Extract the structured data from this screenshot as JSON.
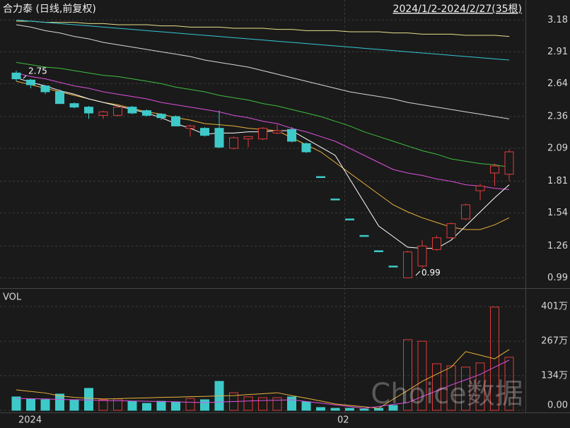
{
  "header": {
    "title": "合力泰 (日线,前复权)",
    "range": "2024/1/2-2024/2/27(35根)",
    "watermark": "Choice数据"
  },
  "chart_data": [
    {
      "type": "candlestick",
      "categories": [
        "2024",
        null,
        null,
        null,
        null,
        null,
        null,
        null,
        null,
        null,
        null,
        null,
        null,
        null,
        null,
        null,
        null,
        null,
        null,
        null,
        null,
        null,
        "02",
        null,
        null,
        null,
        null,
        null,
        null,
        null,
        null,
        null,
        null,
        null,
        null
      ],
      "open": [
        2.73,
        2.67,
        2.62,
        2.57,
        2.47,
        2.44,
        2.37,
        2.37,
        2.44,
        2.41,
        2.38,
        2.36,
        2.26,
        2.26,
        2.26,
        2.09,
        2.17,
        2.17,
        2.22,
        2.25,
        2.13,
        1.85,
        1.66,
        1.49,
        1.35,
        1.22,
        1.09,
        0.99,
        1.09,
        1.23,
        1.33,
        1.49,
        1.73,
        1.88,
        1.87
      ],
      "high": [
        2.75,
        2.68,
        2.63,
        2.59,
        2.48,
        2.45,
        2.41,
        2.44,
        2.45,
        2.42,
        2.39,
        2.37,
        2.29,
        2.27,
        2.41,
        2.19,
        2.19,
        2.27,
        2.29,
        2.27,
        2.14,
        1.85,
        1.66,
        1.49,
        1.35,
        1.22,
        1.09,
        1.22,
        1.31,
        1.35,
        1.46,
        1.62,
        1.79,
        1.96,
        2.08
      ],
      "low": [
        2.66,
        2.6,
        2.55,
        2.47,
        2.43,
        2.34,
        2.34,
        2.36,
        2.38,
        2.36,
        2.33,
        2.28,
        2.19,
        2.19,
        2.09,
        2.08,
        2.1,
        2.16,
        2.21,
        2.14,
        2.05,
        1.85,
        1.66,
        1.49,
        1.35,
        1.22,
        1.09,
        0.99,
        1.07,
        1.22,
        1.32,
        1.48,
        1.65,
        1.77,
        1.81
      ],
      "close": [
        2.68,
        2.63,
        2.57,
        2.47,
        2.44,
        2.39,
        2.4,
        2.44,
        2.39,
        2.37,
        2.35,
        2.28,
        2.28,
        2.2,
        2.1,
        2.18,
        2.19,
        2.26,
        2.24,
        2.15,
        2.06,
        1.85,
        1.66,
        1.49,
        1.35,
        1.22,
        1.09,
        1.21,
        1.26,
        1.33,
        1.45,
        1.61,
        1.77,
        1.94,
        2.06
      ],
      "up_color": "#e23b3b",
      "down_color": "#3ec9c9",
      "ylim": [
        0.92,
        3.32
      ],
      "yticks": [
        3.18,
        2.91,
        2.64,
        2.36,
        2.09,
        1.81,
        1.54,
        1.26,
        0.99
      ],
      "grid": true,
      "high_label": 2.75,
      "low_label": 0.99,
      "lines": [
        {
          "color": "#e6e08a",
          "values": [
            3.17,
            3.17,
            3.16,
            3.16,
            3.16,
            3.15,
            3.15,
            3.14,
            3.14,
            3.14,
            3.13,
            3.13,
            3.12,
            3.12,
            3.12,
            3.11,
            3.11,
            3.11,
            3.1,
            3.1,
            3.09,
            3.09,
            3.09,
            3.08,
            3.08,
            3.08,
            3.07,
            3.07,
            3.06,
            3.06,
            3.06,
            3.05,
            3.05,
            3.05,
            3.04
          ]
        },
        {
          "color": "#35c6d6",
          "values": [
            3.18,
            3.17,
            3.16,
            3.15,
            3.14,
            3.13,
            3.12,
            3.11,
            3.1,
            3.09,
            3.08,
            3.07,
            3.06,
            3.05,
            3.04,
            3.03,
            3.02,
            3.01,
            3.0,
            2.99,
            2.98,
            2.97,
            2.96,
            2.95,
            2.94,
            2.93,
            2.92,
            2.91,
            2.9,
            2.89,
            2.88,
            2.87,
            2.86,
            2.85,
            2.84
          ]
        },
        {
          "color": "#d8d8d8",
          "values": [
            3.14,
            3.12,
            3.09,
            3.07,
            3.04,
            3.02,
            2.99,
            2.97,
            2.95,
            2.93,
            2.91,
            2.89,
            2.87,
            2.84,
            2.82,
            2.8,
            2.78,
            2.75,
            2.72,
            2.69,
            2.66,
            2.63,
            2.6,
            2.57,
            2.55,
            2.53,
            2.51,
            2.48,
            2.46,
            2.44,
            2.42,
            2.4,
            2.38,
            2.36,
            2.34
          ]
        },
        {
          "color": "#3fbf3f",
          "values": [
            2.82,
            2.8,
            2.78,
            2.77,
            2.75,
            2.73,
            2.71,
            2.7,
            2.68,
            2.66,
            2.64,
            2.61,
            2.59,
            2.57,
            2.54,
            2.52,
            2.5,
            2.47,
            2.45,
            2.42,
            2.39,
            2.36,
            2.32,
            2.28,
            2.23,
            2.19,
            2.15,
            2.11,
            2.07,
            2.04,
            2.0,
            1.98,
            1.96,
            1.95,
            1.93
          ]
        },
        {
          "color": "#e050e0",
          "values": [
            2.73,
            2.7,
            2.68,
            2.65,
            2.62,
            2.6,
            2.57,
            2.55,
            2.53,
            2.51,
            2.48,
            2.46,
            2.44,
            2.42,
            2.4,
            2.37,
            2.35,
            2.32,
            2.3,
            2.26,
            2.23,
            2.19,
            2.15,
            2.09,
            2.03,
            1.97,
            1.91,
            1.88,
            1.86,
            1.83,
            1.81,
            1.78,
            1.77,
            1.75,
            1.74
          ]
        },
        {
          "color": "#e8b23c",
          "values": [
            2.66,
            2.63,
            2.6,
            2.57,
            2.54,
            2.51,
            2.48,
            2.46,
            2.43,
            2.4,
            2.38,
            2.35,
            2.33,
            2.3,
            2.29,
            2.28,
            2.26,
            2.25,
            2.24,
            2.18,
            2.12,
            2.06,
            1.97,
            1.88,
            1.79,
            1.7,
            1.61,
            1.55,
            1.5,
            1.46,
            1.42,
            1.4,
            1.4,
            1.44,
            1.5
          ]
        },
        {
          "color": "#ffffff",
          "values": [
            2.69,
            2.65,
            2.62,
            2.58,
            2.55,
            2.51,
            2.48,
            2.45,
            2.42,
            2.39,
            2.35,
            2.3,
            2.26,
            2.21,
            2.22,
            2.22,
            2.23,
            2.23,
            2.24,
            2.24,
            2.17,
            2.1,
            2.03,
            1.83,
            1.63,
            1.43,
            1.34,
            1.25,
            1.24,
            1.24,
            1.31,
            1.43,
            1.55,
            1.67,
            1.78
          ]
        }
      ]
    },
    {
      "type": "bar",
      "title": "VOL",
      "values": [
        52,
        44,
        41,
        63,
        41,
        85,
        41,
        44,
        35,
        27,
        35,
        33,
        46,
        41,
        112,
        68,
        52,
        49,
        49,
        52,
        33,
        11,
        8,
        8,
        5,
        8,
        19,
        273,
        267,
        180,
        172,
        167,
        183,
        399,
        205
      ],
      "ylim": [
        0,
        461
      ],
      "yticks": [
        {
          "value": 401,
          "label": "401万"
        },
        {
          "value": 267,
          "label": "267万"
        },
        {
          "value": 134,
          "label": "134万"
        },
        {
          "value": 0,
          "label": "0.00"
        }
      ],
      "grid": true,
      "lines": [
        {
          "color": "#e8b23c",
          "values": [
            79,
            73,
            67,
            56,
            50,
            47,
            44,
            45,
            47,
            48,
            50,
            51,
            53,
            54,
            56,
            57,
            61,
            64,
            68,
            57,
            47,
            36,
            25,
            19,
            14,
            8,
            43,
            77,
            112,
            140,
            167,
            227,
            213,
            199,
            235
          ]
        },
        {
          "color": "#e050e0",
          "values": [
            46,
            45,
            44,
            42,
            41,
            40,
            38,
            37,
            36,
            35,
            34,
            33,
            31,
            30,
            32,
            34,
            36,
            38,
            39,
            41,
            34,
            28,
            21,
            15,
            8,
            15,
            23,
            30,
            53,
            75,
            98,
            118,
            139,
            167,
            194
          ]
        }
      ]
    }
  ]
}
